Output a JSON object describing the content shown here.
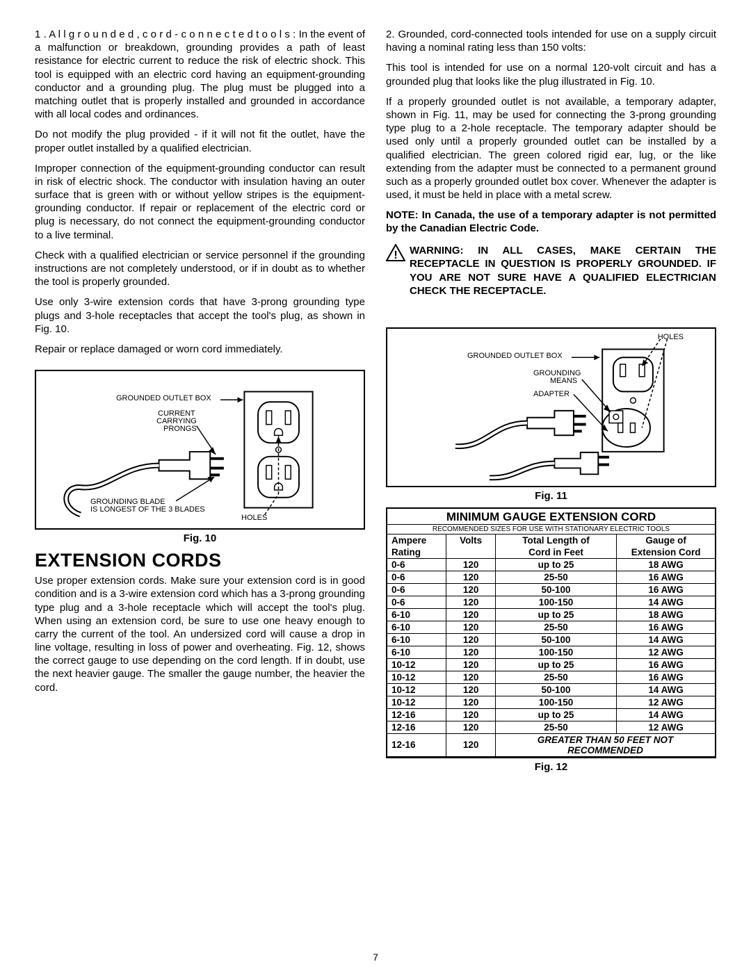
{
  "left": {
    "p1_lead": "1 .  A l l  g r o u n d e d ,  c o r d - c o n n e c t e d  t o o l s :",
    "p1": "In the event of a malfunction or breakdown, grounding provides a path of least resistance for electric current to reduce the risk of electric shock. This tool is equipped with an electric cord having an equipment-grounding conductor and a grounding plug. The plug must be plugged into a matching outlet that is properly installed and grounded in accordance with all local codes and ordinances.",
    "p2": "Do not modify the plug provided - if it will not fit the outlet, have the proper outlet installed by a qualified electrician.",
    "p3": "Improper connection of the equipment-grounding conductor can result in risk of electric shock. The conductor with insulation having an outer surface that is green with or without yellow stripes is the equipment-grounding conductor. If repair or replacement of the electric cord or plug is necessary, do not connect the equipment-grounding conductor to a live terminal.",
    "p4": "Check with a qualified electrician or service personnel if the grounding instructions are not completely understood, or if in doubt as to whether the tool is properly grounded.",
    "p5": "Use only 3-wire extension cords that have 3-prong grounding type plugs and 3-hole receptacles that accept the tool's plug, as shown in Fig. 10.",
    "p6": "Repair or replace damaged or worn cord immediately.",
    "fig10": {
      "caption": "Fig. 10",
      "labels": {
        "outlet": "GROUNDED OUTLET BOX",
        "prongs1": "CURRENT",
        "prongs2": "CARRYING",
        "prongs3": "PRONGS",
        "blade1": "GROUNDING BLADE",
        "blade2": "IS LONGEST OF THE 3 BLADES",
        "holes": "HOLES"
      }
    },
    "section_title": "EXTENSION CORDS",
    "p7": "Use proper extension cords. Make sure your extension cord is in good condition and is a 3-wire extension cord which has a 3-prong grounding type plug and a 3-hole receptacle which will accept the tool's plug. When using an extension cord, be sure to use one heavy enough to carry the current of the tool. An undersized cord will cause a drop in line voltage, resulting in loss of power and overheating. Fig. 12, shows the correct gauge to use depending on the cord length. If in doubt, use the next heavier gauge. The smaller the gauge number, the heavier the cord."
  },
  "right": {
    "p1": "2. Grounded, cord-connected tools intended for use on a supply circuit having a nominal rating less than 150 volts:",
    "p2": "This tool is intended for use on a normal 120-volt circuit and has a grounded plug that looks like the plug illustrated in Fig. 10.",
    "p3": "If a properly grounded outlet is not available, a temporary adapter, shown in Fig. 11, may be used for connecting the 3-prong grounding type plug to a 2-hole receptacle. The temporary adapter should be used only until a properly grounded outlet can be installed by a qualified electrician. The green colored rigid ear, lug, or the like extending from the adapter must be connected to a permanent ground such as a properly grounded outlet box cover. Whenever the adapter is used, it must be held in place with a metal screw.",
    "note": "NOTE: In Canada, the use of a temporary adapter is not permitted by the Canadian Electric Code.",
    "warning": "WARNING: IN ALL CASES, MAKE CERTAIN THE RECEPTACLE IN QUESTION IS PROPERLY GROUNDED. IF YOU ARE NOT SURE HAVE A QUALIFIED ELECTRICIAN CHECK THE RECEPTACLE.",
    "fig11": {
      "caption": "Fig. 11",
      "labels": {
        "holes": "HOLES",
        "outlet": "GROUNDED OUTLET BOX",
        "means1": "GROUNDING",
        "means2": "MEANS",
        "adapter": "ADAPTER"
      }
    },
    "table": {
      "title": "MINIMUM GAUGE EXTENSION CORD",
      "subtitle": "RECOMMENDED SIZES FOR USE WITH STATIONARY ELECTRIC TOOLS",
      "headers": {
        "c1a": "Ampere",
        "c1b": "Rating",
        "c2": "Volts",
        "c3a": "Total Length of",
        "c3b": "Cord in Feet",
        "c4a": "Gauge of",
        "c4b": "Extension Cord"
      },
      "rows": [
        [
          "0-6",
          "120",
          "up to 25",
          "18 AWG"
        ],
        [
          "0-6",
          "120",
          "25-50",
          "16 AWG"
        ],
        [
          "0-6",
          "120",
          "50-100",
          "16 AWG"
        ],
        [
          "0-6",
          "120",
          "100-150",
          "14 AWG"
        ],
        [
          "6-10",
          "120",
          "up to 25",
          "18 AWG"
        ],
        [
          "6-10",
          "120",
          "25-50",
          "16 AWG"
        ],
        [
          "6-10",
          "120",
          "50-100",
          "14 AWG"
        ],
        [
          "6-10",
          "120",
          "100-150",
          "12 AWG"
        ],
        [
          "10-12",
          "120",
          "up to 25",
          "16 AWG"
        ],
        [
          "10-12",
          "120",
          "25-50",
          "16 AWG"
        ],
        [
          "10-12",
          "120",
          "50-100",
          "14 AWG"
        ],
        [
          "10-12",
          "120",
          "100-150",
          "12 AWG"
        ],
        [
          "12-16",
          "120",
          "up to 25",
          "14 AWG"
        ],
        [
          "12-16",
          "120",
          "25-50",
          "12 AWG"
        ]
      ],
      "last_row": {
        "ampere": "12-16",
        "volts": "120",
        "note": "GREATER THAN 50 FEET NOT RECOMMENDED"
      },
      "caption": "Fig. 12"
    }
  },
  "page_number": "7"
}
